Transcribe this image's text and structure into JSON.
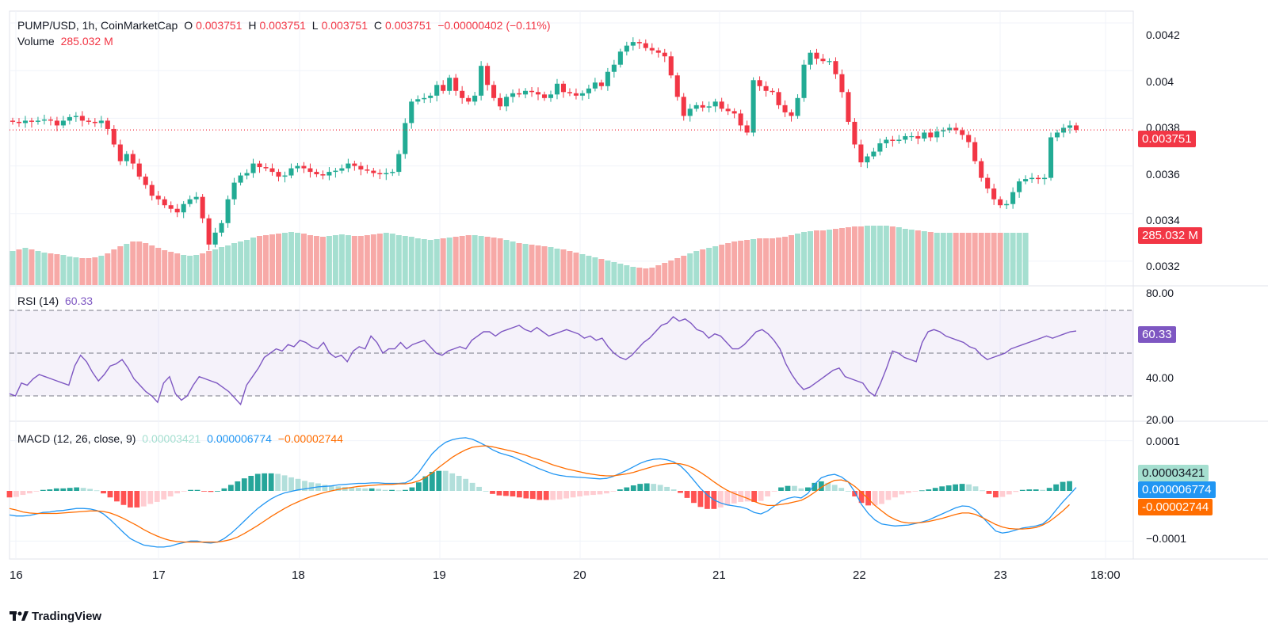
{
  "header": {
    "symbol": "PUMP/USD, 1h, CoinMarketCap",
    "o_label": "O",
    "o_value": "0.003751",
    "h_label": "H",
    "h_value": "0.003751",
    "l_label": "L",
    "l_value": "0.003751",
    "c_label": "C",
    "c_value": "0.003751",
    "change": "−0.00000402 (−0.11%)",
    "volume_label": "Volume",
    "volume_value": "285.032 M"
  },
  "rsi_header": {
    "label": "RSI (14)",
    "value": "60.33"
  },
  "macd_header": {
    "label": "MACD (12, 26, close, 9)",
    "hist": "0.00003421",
    "macd": "0.000006774",
    "signal": "−0.00002744"
  },
  "price_axis": [
    "0.0042",
    "0.004",
    "0.0038",
    "0.0036",
    "0.0034",
    "0.0032"
  ],
  "rsi_axis": [
    "80.00",
    "40.00",
    "20.00"
  ],
  "macd_axis": [
    "0.0001",
    "−0.0001"
  ],
  "time_axis": [
    "16",
    "17",
    "18",
    "19",
    "20",
    "21",
    "22",
    "23",
    "18:00"
  ],
  "tags": {
    "price": "0.003751",
    "volume": "285.032 M",
    "rsi": "60.33",
    "hist": "0.00003421",
    "macd": "0.000006774",
    "signal": "-0.00002744"
  },
  "branding": {
    "name": "TradingView"
  },
  "colors": {
    "up": "#22ab94",
    "down": "#f23645",
    "rsi": "#7e57c2",
    "macd": "#2196f3",
    "signal": "#ff6d00"
  },
  "chart_data": {
    "type": "candlestick",
    "x_labels": [
      "16",
      "17",
      "18",
      "19",
      "20",
      "21",
      "22",
      "23",
      "18:00"
    ],
    "y_range": [
      0.0031,
      0.00425
    ],
    "rsi_range": [
      20,
      80
    ],
    "rsi_levels": [
      70,
      50,
      30
    ],
    "macd_range": [
      -0.00012,
      0.00012
    ],
    "close_series": [
      0.003785,
      0.00378,
      0.00379,
      0.003785,
      0.00379,
      0.003795,
      0.00379,
      0.00377,
      0.00379,
      0.003805,
      0.00381,
      0.00379,
      0.003785,
      0.00378,
      0.00379,
      0.003755,
      0.00369,
      0.00362,
      0.00365,
      0.00361,
      0.003555,
      0.00352,
      0.003475,
      0.00346,
      0.003435,
      0.00342,
      0.003405,
      0.00344,
      0.00346,
      0.00347,
      0.00338,
      0.00327,
      0.00332,
      0.00336,
      0.00346,
      0.00353,
      0.00356,
      0.00357,
      0.00361,
      0.003595,
      0.00359,
      0.003575,
      0.003555,
      0.00356,
      0.00359,
      0.0036,
      0.00359,
      0.003575,
      0.003565,
      0.00356,
      0.003575,
      0.00358,
      0.00359,
      0.00361,
      0.0036,
      0.003585,
      0.00358,
      0.00357,
      0.003565,
      0.00357,
      0.003575,
      0.00365,
      0.00378,
      0.00387,
      0.00388,
      0.003885,
      0.003895,
      0.00394,
      0.003915,
      0.00397,
      0.003915,
      0.003885,
      0.00387,
      0.003895,
      0.00402,
      0.00394,
      0.003885,
      0.00385,
      0.00389,
      0.003905,
      0.0039,
      0.003915,
      0.00391,
      0.0039,
      0.003885,
      0.0039,
      0.003945,
      0.00391,
      0.003905,
      0.003895,
      0.003905,
      0.003925,
      0.00395,
      0.003935,
      0.003995,
      0.004025,
      0.00408,
      0.004105,
      0.00412,
      0.004115,
      0.004095,
      0.004085,
      0.004075,
      0.00406,
      0.00398,
      0.00389,
      0.00381,
      0.00384,
      0.003855,
      0.003845,
      0.00385,
      0.00387,
      0.00384,
      0.00383,
      0.00382,
      0.00377,
      0.00374,
      0.00396,
      0.003935,
      0.003915,
      0.00391,
      0.003855,
      0.003825,
      0.00381,
      0.003885,
      0.004025,
      0.004075,
      0.00405,
      0.00404,
      0.00404,
      0.003985,
      0.00391,
      0.003785,
      0.00369,
      0.003615,
      0.00364,
      0.00366,
      0.003695,
      0.00371,
      0.003705,
      0.00371,
      0.003725,
      0.003725,
      0.003715,
      0.00374,
      0.00372,
      0.003745,
      0.00375,
      0.00376,
      0.00375,
      0.00373,
      0.0037,
      0.00362,
      0.00355,
      0.003505,
      0.00346,
      0.003435,
      0.00344,
      0.00349,
      0.003535,
      0.003545,
      0.00355,
      0.003545,
      0.00355,
      0.00372,
      0.00374,
      0.00376,
      0.00377,
      0.003751
    ],
    "volume_trend": [
      0.43,
      0.45,
      0.47,
      0.45,
      0.43,
      0.41,
      0.4,
      0.39,
      0.38,
      0.36,
      0.35,
      0.34,
      0.34,
      0.35,
      0.37,
      0.4,
      0.45,
      0.49,
      0.52,
      0.55,
      0.55,
      0.53,
      0.5,
      0.47,
      0.44,
      0.42,
      0.4,
      0.38,
      0.37,
      0.38,
      0.4,
      0.43,
      0.45,
      0.48,
      0.5,
      0.53,
      0.55,
      0.57,
      0.6,
      0.62,
      0.63,
      0.64,
      0.65,
      0.66,
      0.67,
      0.66,
      0.65,
      0.63,
      0.62,
      0.61,
      0.62,
      0.63,
      0.64,
      0.63,
      0.62,
      0.62,
      0.63,
      0.64,
      0.65,
      0.66,
      0.65,
      0.63,
      0.62,
      0.61,
      0.59,
      0.58,
      0.57,
      0.58,
      0.59,
      0.6,
      0.61,
      0.62,
      0.63,
      0.63,
      0.62,
      0.61,
      0.6,
      0.59,
      0.57,
      0.55,
      0.53,
      0.52,
      0.51,
      0.5,
      0.49,
      0.48,
      0.46,
      0.45,
      0.43,
      0.41,
      0.39,
      0.37,
      0.35,
      0.33,
      0.31,
      0.29,
      0.27,
      0.25,
      0.23,
      0.22,
      0.21,
      0.22,
      0.25,
      0.28,
      0.31,
      0.34,
      0.37,
      0.4,
      0.43,
      0.45,
      0.47,
      0.49,
      0.51,
      0.53,
      0.55,
      0.56,
      0.57,
      0.58,
      0.59,
      0.59,
      0.59,
      0.6,
      0.61,
      0.63,
      0.65,
      0.67,
      0.68,
      0.69,
      0.69,
      0.7,
      0.71,
      0.72,
      0.73,
      0.74,
      0.74,
      0.75,
      0.75,
      0.75,
      0.75,
      0.74,
      0.73,
      0.71,
      0.7,
      0.69,
      0.68,
      0.67,
      0.66,
      0.66,
      0.66,
      0.66,
      0.66,
      0.66,
      0.66,
      0.66,
      0.66,
      0.66,
      0.66,
      0.66,
      0.66,
      0.66,
      0.66
    ],
    "rsi_series": [
      31,
      30,
      36,
      35,
      38,
      40,
      39,
      38,
      37,
      36,
      35,
      44,
      49,
      46,
      41,
      37,
      40,
      44,
      45,
      47,
      43,
      38,
      35,
      32,
      30,
      27,
      36,
      39,
      31,
      28,
      30,
      35,
      39,
      38,
      37,
      36,
      34,
      32,
      29,
      26,
      35,
      39,
      43,
      48,
      50,
      52,
      51,
      54,
      53,
      56,
      55,
      53,
      52,
      55,
      50,
      48,
      49,
      46,
      51,
      53,
      52,
      58,
      55,
      50,
      52,
      52,
      55,
      52,
      54,
      55,
      56,
      53,
      50,
      49,
      51,
      52,
      53,
      52,
      56,
      58,
      60,
      60,
      58,
      60,
      61,
      62,
      63,
      61,
      60,
      62,
      60,
      58,
      59,
      60,
      61,
      60,
      59,
      57,
      58,
      56,
      57,
      53,
      50,
      48,
      47,
      49,
      52,
      55,
      57,
      60,
      63,
      64,
      67,
      65,
      66,
      64,
      61,
      60,
      57,
      59,
      58,
      55,
      52,
      52,
      54,
      57,
      60,
      61,
      59,
      56,
      52,
      45,
      40,
      36,
      33,
      34,
      36,
      38,
      40,
      42,
      43,
      39,
      38,
      37,
      36,
      32,
      30,
      36,
      43,
      51,
      50,
      48,
      47,
      46,
      55,
      60,
      61,
      60,
      58,
      57,
      56,
      55,
      53,
      52,
      49,
      47,
      48,
      49,
      50,
      52,
      53,
      54,
      55,
      56,
      57,
      58,
      57,
      58,
      59,
      60,
      60.33
    ],
    "macd_series": [
      -4.8e-05,
      -5e-05,
      -5e-05,
      -4.9e-05,
      -4.6e-05,
      -4.3e-05,
      -4.2e-05,
      -4e-05,
      -3.9e-05,
      -3.7e-05,
      -3.5e-05,
      -3.5e-05,
      -3.6e-05,
      -3.9e-05,
      -4.6e-05,
      -5.7e-05,
      -7e-05,
      -8.3e-05,
      -9.5e-05,
      -0.000102,
      -0.000108,
      -0.00011,
      -0.000112,
      -0.000112,
      -0.00011,
      -0.000106,
      -0.000103,
      -0.0001,
      -0.0001,
      -0.000103,
      -0.000104,
      -0.000102,
      -9.5e-05,
      -8.5e-05,
      -7.3e-05,
      -6e-05,
      -4.7e-05,
      -3.5e-05,
      -2.5e-05,
      -1.6e-05,
      -9e-06,
      -4e-06,
      -1e-06,
      2e-06,
      4e-06,
      6e-06,
      8e-06,
      9e-06,
      1e-05,
      1.2e-05,
      1.3e-05,
      1.4e-05,
      1.5e-05,
      1.5e-05,
      1.6e-05,
      1.6e-05,
      1.5e-05,
      1.5e-05,
      1.5e-05,
      1.6e-05,
      2.3e-05,
      3.7e-05,
      5.6e-05,
      7.4e-05,
      8.7e-05,
      9.7e-05,
      0.000102,
      0.000105,
      0.000106,
      0.000103,
      9.7e-05,
      9e-05,
      8.2e-05,
      7.6e-05,
      7.2e-05,
      6.8e-05,
      6.2e-05,
      5.6e-05,
      5e-05,
      4.4e-05,
      3.9e-05,
      3.4e-05,
      3.1e-05,
      2.9e-05,
      2.8e-05,
      2.7e-05,
      2.6e-05,
      2.5e-05,
      2.4e-05,
      2.5e-05,
      2.9e-05,
      3.5e-05,
      4.1e-05,
      4.8e-05,
      5.5e-05,
      6e-05,
      6.3e-05,
      6.4e-05,
      6.2e-05,
      5.8e-05,
      5e-05,
      3.7e-05,
      2.1e-05,
      5e-06,
      -8e-06,
      -1.8e-05,
      -2.4e-05,
      -2.8e-05,
      -3e-05,
      -3.2e-05,
      -3.6e-05,
      -4.3e-05,
      -4.6e-05,
      -4e-05,
      -3e-05,
      -2e-05,
      -1.5e-05,
      -1.2e-05,
      -1.4e-05,
      -5e-06,
      1.3e-05,
      2.6e-05,
      3.1e-05,
      3.3e-05,
      2.8e-05,
      1.8e-05,
      -2e-06,
      -2.7e-05,
      -4.5e-05,
      -5.8e-05,
      -6.6e-05,
      -6.8e-05,
      -7e-05,
      -6.9e-05,
      -6.8e-05,
      -6.5e-05,
      -6.2e-05,
      -5.8e-05,
      -5.2e-05,
      -4.6e-05,
      -4e-05,
      -3.4e-05,
      -3e-05,
      -3.1e-05,
      -3.8e-05,
      -5.2e-05,
      -6.6e-05,
      -8e-05,
      -8.4e-05,
      -8.2e-05,
      -7.8e-05,
      -7.4e-05,
      -7.2e-05,
      -7e-05,
      -6.6e-05,
      -5.5e-05,
      -3.8e-05,
      -2.2e-05,
      -8e-06,
      6.774e-06
    ],
    "signal_series": [
      -3.5e-05,
      -3.8e-05,
      -4.2e-05,
      -4.4e-05,
      -4.5e-05,
      -4.5e-05,
      -4.5e-05,
      -4.5e-05,
      -4.4e-05,
      -4.3e-05,
      -4.2e-05,
      -4.1e-05,
      -4e-05,
      -4e-05,
      -4.1e-05,
      -4.4e-05,
      -4.9e-05,
      -5.5e-05,
      -6.2e-05,
      -6.9e-05,
      -7.7e-05,
      -8.4e-05,
      -9e-05,
      -9.5e-05,
      -9.9e-05,
      -0.000101,
      -0.000102,
      -0.000102,
      -0.000102,
      -0.000102,
      -0.000102,
      -0.000102,
      -0.0001,
      -9.7e-05,
      -9.2e-05,
      -8.5e-05,
      -7.7e-05,
      -6.9e-05,
      -6e-05,
      -5.1e-05,
      -4.3e-05,
      -3.5e-05,
      -2.8e-05,
      -2.2e-05,
      -1.6e-05,
      -1.1e-05,
      -7e-06,
      -3e-06,
      0,
      3e-06,
      5e-06,
      7e-06,
      9e-06,
      1e-05,
      1.1e-05,
      1.2e-05,
      1.3e-05,
      1.3e-05,
      1.4e-05,
      1.4e-05,
      1.6e-05,
      2e-05,
      2.7e-05,
      3.6e-05,
      4.7e-05,
      5.7e-05,
      6.7e-05,
      7.5e-05,
      8.2e-05,
      8.7e-05,
      8.9e-05,
      9e-05,
      8.8e-05,
      8.5e-05,
      8.2e-05,
      7.9e-05,
      7.5e-05,
      7.1e-05,
      6.6e-05,
      6.2e-05,
      5.7e-05,
      5.2e-05,
      4.8e-05,
      4.4e-05,
      4.1e-05,
      3.8e-05,
      3.5e-05,
      3.3e-05,
      3.1e-05,
      3e-05,
      3e-05,
      3.2e-05,
      3.4e-05,
      3.7e-05,
      4.1e-05,
      4.5e-05,
      4.9e-05,
      5.2e-05,
      5.4e-05,
      5.5e-05,
      5.4e-05,
      5.1e-05,
      4.5e-05,
      3.7e-05,
      2.8e-05,
      1.8e-05,
      9e-06,
      1e-06,
      -5e-06,
      -1e-05,
      -1.5e-05,
      -2.1e-05,
      -2.6e-05,
      -2.9e-05,
      -2.9e-05,
      -2.7e-05,
      -2.5e-05,
      -2.2e-05,
      -1.9e-05,
      -1.2e-05,
      -3e-06,
      7e-06,
      1.5e-05,
      2.1e-05,
      2.2e-05,
      1.8e-05,
      9e-06,
      -3e-06,
      -1.6e-05,
      -2.9e-05,
      -4e-05,
      -5e-05,
      -5.7e-05,
      -6.2e-05,
      -6.4e-05,
      -6.4e-05,
      -6.3e-05,
      -6.1e-05,
      -5.8e-05,
      -5.5e-05,
      -5.1e-05,
      -4.7e-05,
      -4.4e-05,
      -4.4e-05,
      -4.7e-05,
      -5.3e-05,
      -6e-05,
      -6.7e-05,
      -7.2e-05,
      -7.5e-05,
      -7.6e-05,
      -7.6e-05,
      -7.5e-05,
      -7.3e-05,
      -6.8e-05,
      -6.1e-05,
      -5.1e-05,
      -4e-05,
      -2.744e-05
    ]
  }
}
